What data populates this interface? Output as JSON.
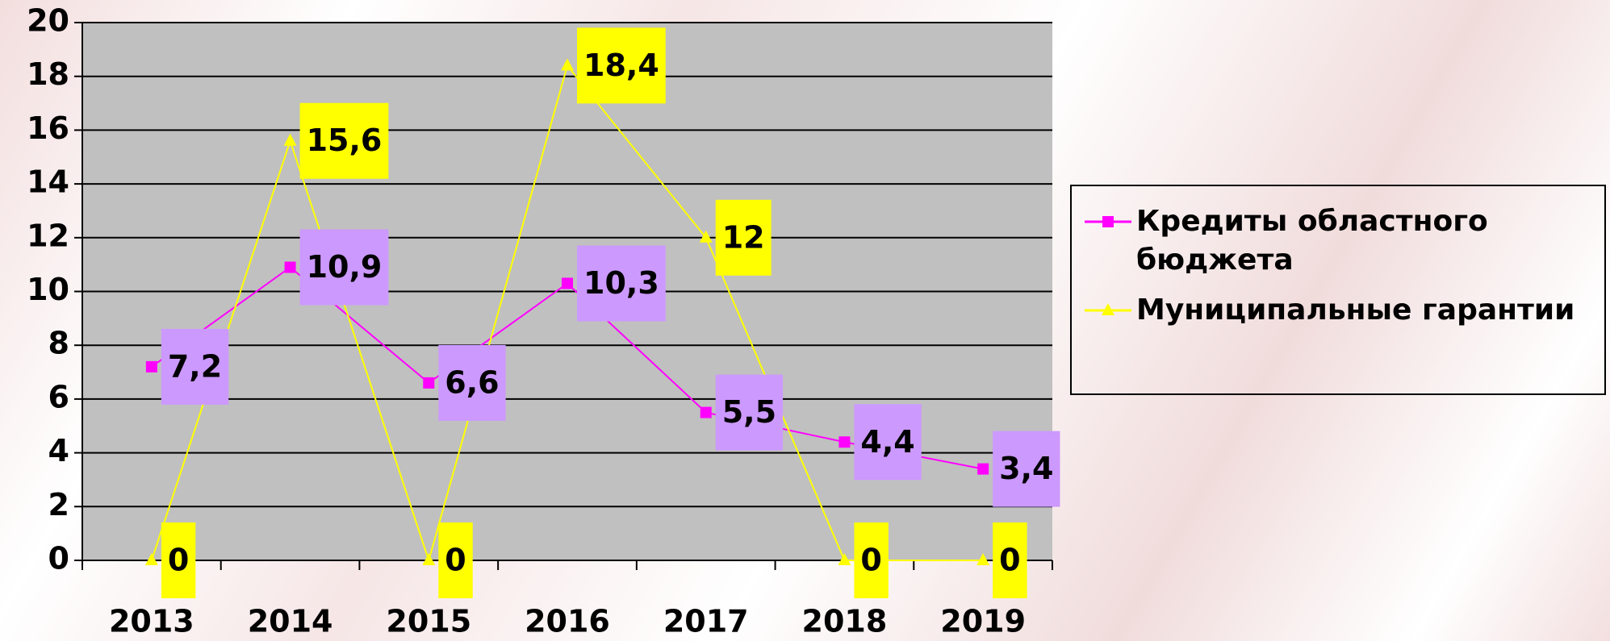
{
  "chart_data": {
    "type": "line",
    "categories": [
      "2013",
      "2014",
      "2015",
      "2016",
      "2017",
      "2018",
      "2019"
    ],
    "series": [
      {
        "name": "Кредиты областного бюджета",
        "color": "#ff00ff",
        "marker": "square",
        "values": [
          7.2,
          10.9,
          6.6,
          10.3,
          5.5,
          4.4,
          3.4
        ],
        "value_labels": [
          "7,2",
          "10,9",
          "6,6",
          "10,3",
          "5,5",
          "4,4",
          "3,4"
        ]
      },
      {
        "name": "Муниципальные гарантии",
        "color": "#ffff00",
        "marker": "triangle",
        "values": [
          0,
          15.6,
          0,
          18.4,
          12,
          0,
          0
        ],
        "value_labels": [
          "0",
          "15,6",
          "0",
          "18,4",
          "12",
          "0",
          "0"
        ]
      }
    ],
    "ylim": [
      0,
      20
    ],
    "yticks": [
      0,
      2,
      4,
      6,
      8,
      10,
      12,
      14,
      16,
      18,
      20
    ],
    "grid": true,
    "legend": "right"
  }
}
